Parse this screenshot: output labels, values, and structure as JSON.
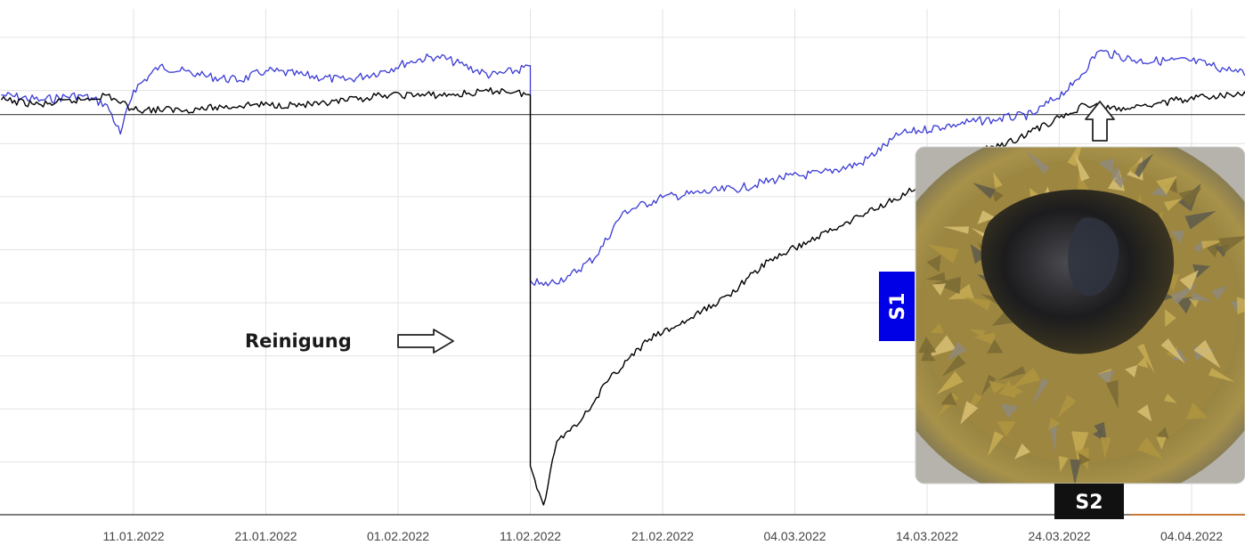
{
  "chart_data": {
    "type": "line",
    "title": "",
    "xlabel": "",
    "ylabel": "",
    "x_tick_labels": [
      "11.01.2022",
      "21.01.2022",
      "01.02.2022",
      "11.02.2022",
      "21.02.2022",
      "04.03.2022",
      "14.03.2022",
      "24.03.2022",
      "04.04.2022"
    ],
    "grid": true,
    "y_tick_labels_visible": false,
    "series": [
      {
        "color": "#3a3ad6",
        "points": [
          [
            "2022-01-01",
            86
          ],
          [
            "2022-01-04",
            85
          ],
          [
            "2022-01-07",
            86
          ],
          [
            "2022-01-09",
            84
          ],
          [
            "2022-01-10",
            78
          ],
          [
            "2022-01-11",
            87
          ],
          [
            "2022-01-13",
            92
          ],
          [
            "2022-01-16",
            90
          ],
          [
            "2022-01-19",
            89
          ],
          [
            "2022-01-21",
            91
          ],
          [
            "2022-01-24",
            90
          ],
          [
            "2022-01-27",
            89
          ],
          [
            "2022-01-30",
            91
          ],
          [
            "2022-02-01",
            93
          ],
          [
            "2022-02-03",
            94
          ],
          [
            "2022-02-05",
            92
          ],
          [
            "2022-02-07",
            90
          ],
          [
            "2022-02-09",
            91
          ],
          [
            "2022-02-10",
            92
          ],
          [
            "2022-02-10",
            48
          ],
          [
            "2022-02-11",
            47
          ],
          [
            "2022-02-13",
            49
          ],
          [
            "2022-02-15",
            53
          ],
          [
            "2022-02-17",
            62
          ],
          [
            "2022-02-20",
            65
          ],
          [
            "2022-02-23",
            66
          ],
          [
            "2022-02-26",
            67
          ],
          [
            "2022-03-01",
            69
          ],
          [
            "2022-03-04",
            70
          ],
          [
            "2022-03-07",
            72
          ],
          [
            "2022-03-10",
            78
          ],
          [
            "2022-03-14",
            80
          ],
          [
            "2022-03-17",
            81
          ],
          [
            "2022-03-20",
            82
          ],
          [
            "2022-03-23",
            88
          ],
          [
            "2022-03-25",
            95
          ],
          [
            "2022-03-28",
            93
          ],
          [
            "2022-04-01",
            93
          ],
          [
            "2022-04-04",
            91
          ],
          [
            "2022-04-07",
            89
          ]
        ]
      },
      {
        "color": "#000000",
        "points": [
          [
            "2022-01-01",
            85
          ],
          [
            "2022-01-04",
            84
          ],
          [
            "2022-01-07",
            85
          ],
          [
            "2022-01-09",
            86
          ],
          [
            "2022-01-11",
            83
          ],
          [
            "2022-01-15",
            83
          ],
          [
            "2022-01-20",
            84
          ],
          [
            "2022-01-25",
            84
          ],
          [
            "2022-01-30",
            86
          ],
          [
            "2022-02-04",
            86
          ],
          [
            "2022-02-08",
            87
          ],
          [
            "2022-02-10",
            86
          ],
          [
            "2022-02-10",
            10
          ],
          [
            "2022-02-11",
            2
          ],
          [
            "2022-02-12",
            15
          ],
          [
            "2022-02-14",
            20
          ],
          [
            "2022-02-16",
            28
          ],
          [
            "2022-02-19",
            36
          ],
          [
            "2022-02-22",
            40
          ],
          [
            "2022-02-25",
            45
          ],
          [
            "2022-02-28",
            52
          ],
          [
            "2022-03-03",
            56
          ],
          [
            "2022-03-06",
            60
          ],
          [
            "2022-03-09",
            64
          ],
          [
            "2022-03-12",
            68
          ],
          [
            "2022-03-15",
            74
          ],
          [
            "2022-03-18",
            76
          ],
          [
            "2022-03-21",
            80
          ],
          [
            "2022-03-24",
            84
          ],
          [
            "2022-03-27",
            83
          ],
          [
            "2022-03-31",
            85
          ],
          [
            "2022-04-04",
            86
          ],
          [
            "2022-04-07",
            87
          ]
        ]
      }
    ],
    "reference_line": 82,
    "annotations": {
      "reinigung": "Reinigung",
      "s1": "S1",
      "s2": "S2"
    },
    "colors": {
      "s1_badge": "#0000e6",
      "s2_badge": "#111111",
      "grid": "#e3e3e3",
      "bottom_accent": "#c87a3a"
    }
  }
}
